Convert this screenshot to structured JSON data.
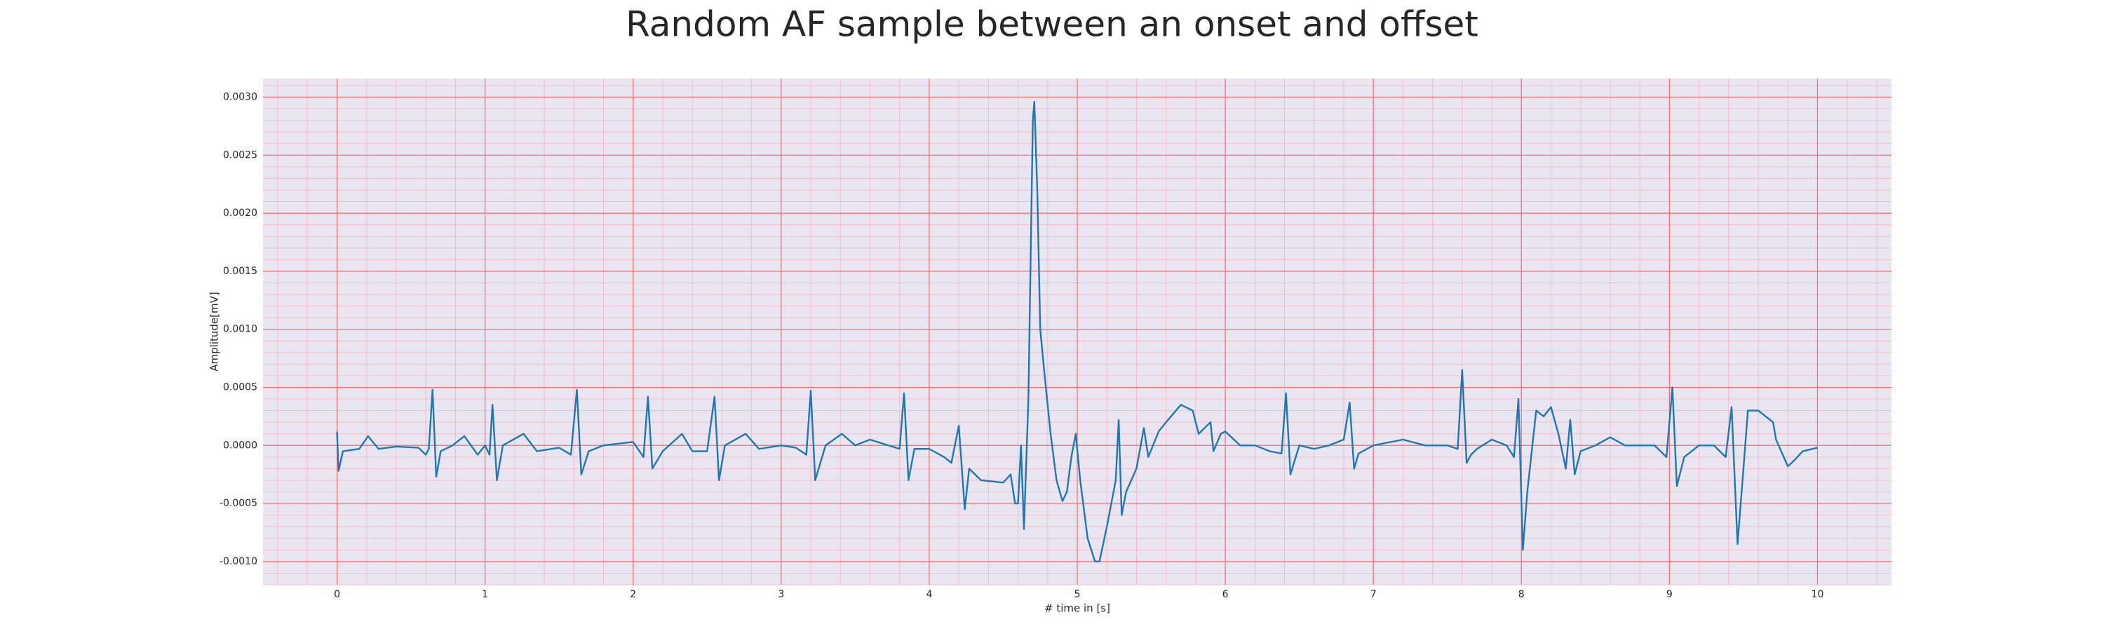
{
  "chart_data": {
    "type": "line",
    "title": "Random AF sample between an onset and offset",
    "x_label": "# time in [s]",
    "y_label": "Amplitude[mV]",
    "xlim": [
      -0.5,
      10.5
    ],
    "ylim": [
      -0.0012,
      0.00316
    ],
    "xticks": [
      0,
      1,
      2,
      3,
      4,
      5,
      6,
      7,
      8,
      9,
      10
    ],
    "yticks": [
      {
        "value": -0.001,
        "label": "-0.0010"
      },
      {
        "value": -0.0005,
        "label": "-0.0005"
      },
      {
        "value": 0,
        "label": "0.0000"
      },
      {
        "value": 0.0005,
        "label": "0.0005"
      },
      {
        "value": 0.001,
        "label": "0.0010"
      },
      {
        "value": 0.0015,
        "label": "0.0015"
      },
      {
        "value": 0.002,
        "label": "0.0020"
      },
      {
        "value": 0.0025,
        "label": "0.0025"
      },
      {
        "value": 0.003,
        "label": "0.0030"
      }
    ],
    "grid": true,
    "minor_grid": true,
    "background_color": "#eae6f1",
    "grid_color": "#f07070",
    "minor_grid_color": "#f2bcc8",
    "x": [
      0,
      0.01,
      0.04,
      0.15,
      0.21,
      0.28,
      0.4,
      0.55,
      0.6,
      0.62,
      0.645,
      0.67,
      0.7,
      0.78,
      0.86,
      0.95,
      1.0,
      1.03,
      1.05,
      1.08,
      1.12,
      1.26,
      1.35,
      1.5,
      1.58,
      1.62,
      1.65,
      1.7,
      1.8,
      2.0,
      2.07,
      2.1,
      2.13,
      2.2,
      2.33,
      2.4,
      2.5,
      2.55,
      2.58,
      2.62,
      2.76,
      2.85,
      3.0,
      3.1,
      3.17,
      3.2,
      3.23,
      3.3,
      3.41,
      3.5,
      3.6,
      3.8,
      3.83,
      3.86,
      3.9,
      4.0,
      4.1,
      4.15,
      4.2,
      4.24,
      4.27,
      4.35,
      4.5,
      4.55,
      4.58,
      4.6,
      4.62,
      4.64,
      4.67,
      4.7,
      4.71,
      4.73,
      4.75,
      4.78,
      4.82,
      4.86,
      4.9,
      4.93,
      4.96,
      4.99,
      5.02,
      5.07,
      5.12,
      5.15,
      5.2,
      5.26,
      5.28,
      5.3,
      5.33,
      5.4,
      5.45,
      5.48,
      5.55,
      5.6,
      5.7,
      5.78,
      5.82,
      5.86,
      5.9,
      5.92,
      5.97,
      6.0,
      6.1,
      6.2,
      6.3,
      6.38,
      6.41,
      6.44,
      6.5,
      6.6,
      6.7,
      6.8,
      6.84,
      6.87,
      6.9,
      7.0,
      7.2,
      7.35,
      7.5,
      7.57,
      7.6,
      7.63,
      7.66,
      7.7,
      7.8,
      7.9,
      7.95,
      7.98,
      8.01,
      8.04,
      8.1,
      8.15,
      8.2,
      8.25,
      8.3,
      8.33,
      8.36,
      8.4,
      8.5,
      8.6,
      8.7,
      8.9,
      8.98,
      9.02,
      9.05,
      9.1,
      9.2,
      9.3,
      9.38,
      9.42,
      9.46,
      9.5,
      9.53,
      9.6,
      9.7,
      9.72,
      9.8,
      9.85,
      9.9,
      10.0
    ],
    "series": [
      {
        "name": "Amplitude",
        "color": "#1f77b4",
        "values": [
          0.00012,
          -0.00022,
          -5e-05,
          -3e-05,
          8e-05,
          -3e-05,
          -1e-05,
          -2e-05,
          -8e-05,
          -3e-05,
          0.00048,
          -0.00027,
          -5e-05,
          0,
          8e-05,
          -8e-05,
          0,
          -8e-05,
          0.00035,
          -0.0003,
          0,
          0.0001,
          -5e-05,
          -2e-05,
          -8e-05,
          0.00048,
          -0.00025,
          -5e-05,
          0,
          3e-05,
          -0.0001,
          0.00042,
          -0.0002,
          -5e-05,
          0.0001,
          -5e-05,
          -5e-05,
          0.00042,
          -0.0003,
          0,
          0.0001,
          -3e-05,
          0,
          -2e-05,
          -8e-05,
          0.00047,
          -0.0003,
          0,
          0.0001,
          0,
          5e-05,
          -3e-05,
          0.00045,
          -0.0003,
          -3e-05,
          -3e-05,
          -0.0001,
          -0.00015,
          0.00017,
          -0.00055,
          -0.0002,
          -0.0003,
          -0.00032,
          -0.00025,
          -0.0005,
          -0.0005,
          0,
          -0.00072,
          0.0004,
          0.0028,
          0.00296,
          0.0022,
          0.001,
          0.0006,
          0.0001,
          -0.0003,
          -0.00048,
          -0.0004,
          -0.0001,
          0.0001,
          -0.0003,
          -0.0008,
          -0.001,
          -0.001,
          -0.0007,
          -0.0003,
          0.00022,
          -0.0006,
          -0.0004,
          -0.0002,
          0.00015,
          -0.0001,
          0.00012,
          0.0002,
          0.00035,
          0.0003,
          0.0001,
          0.00015,
          0.0002,
          -5e-05,
          0.0001,
          0.00012,
          0,
          0,
          -5e-05,
          -7e-05,
          0.00045,
          -0.00025,
          0,
          -3e-05,
          0,
          5e-05,
          0.00037,
          -0.0002,
          -7e-05,
          0,
          5e-05,
          0,
          0,
          -3e-05,
          0.00065,
          -0.00015,
          -8e-05,
          -3e-05,
          5e-05,
          0,
          -0.0001,
          0.0004,
          -0.0009,
          -0.0004,
          0.0003,
          0.00025,
          0.00033,
          0.0001,
          -0.0002,
          0.00022,
          -0.00025,
          -5e-05,
          0,
          7e-05,
          0,
          0,
          -0.0001,
          0.0005,
          -0.00035,
          -0.0001,
          0,
          0,
          -0.0001,
          0.00033,
          -0.00085,
          -0.0002,
          0.0003,
          0.0003,
          0.0002,
          5e-05,
          -0.00018,
          -0.00012,
          -5e-05,
          -2e-05
        ]
      }
    ]
  }
}
